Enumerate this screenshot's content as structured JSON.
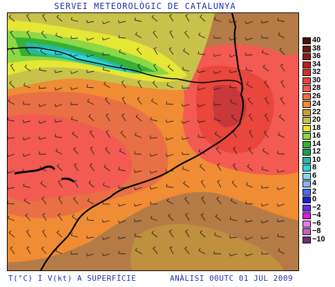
{
  "header": {
    "title": "SERVEI METEOROLÒGIC DE CATALUNYA"
  },
  "footer": {
    "left": "T(°C) I V(kt) A SUPERFÍCIE",
    "right": "ANÀLISI 00UTC 01 JUL 2009"
  },
  "legend": {
    "items": [
      {
        "label": "40",
        "color": "#4a1208"
      },
      {
        "label": "38",
        "color": "#6e1a0e"
      },
      {
        "label": "36",
        "color": "#901c14"
      },
      {
        "label": "34",
        "color": "#b82218"
      },
      {
        "label": "32",
        "color": "#d63224"
      },
      {
        "label": "30",
        "color": "#e9463c"
      },
      {
        "label": "28",
        "color": "#f25a52"
      },
      {
        "label": "26",
        "color": "#e87044"
      },
      {
        "label": "24",
        "color": "#f08c34"
      },
      {
        "label": "22",
        "color": "#c4a23a"
      },
      {
        "label": "20",
        "color": "#c8c24a"
      },
      {
        "label": "18",
        "color": "#e6e634"
      },
      {
        "label": "16",
        "color": "#8ed846"
      },
      {
        "label": "14",
        "color": "#34b234"
      },
      {
        "label": "12",
        "color": "#1f9a5a"
      },
      {
        "label": "10",
        "color": "#2ab6a4"
      },
      {
        "label": "8",
        "color": "#28d8d2"
      },
      {
        "label": "6",
        "color": "#88d8ec"
      },
      {
        "label": "4",
        "color": "#8cb2ec"
      },
      {
        "label": "2",
        "color": "#4a6ce6"
      },
      {
        "label": "0",
        "color": "#1e20c8"
      },
      {
        "label": "−2",
        "color": "#6a2ee0"
      },
      {
        "label": "−4",
        "color": "#d61ee0"
      },
      {
        "label": "−6",
        "color": "#e67ce8"
      },
      {
        "label": "−8",
        "color": "#c460c6"
      },
      {
        "label": "−10",
        "color": "#6c306c"
      }
    ]
  },
  "map": {
    "field_colors": {
      "base": "#b57b47",
      "warm": "#e87044",
      "hot": "#f25a52",
      "hotter": "#e9463c",
      "core": "#c8383a",
      "orange": "#f08c34",
      "olive": "#c4a23a",
      "khaki": "#c8c24a",
      "yellow": "#e6e634",
      "lime": "#8ed846",
      "green": "#34b234",
      "teal": "#2ab6a4",
      "sea": "#28d8d2"
    }
  }
}
